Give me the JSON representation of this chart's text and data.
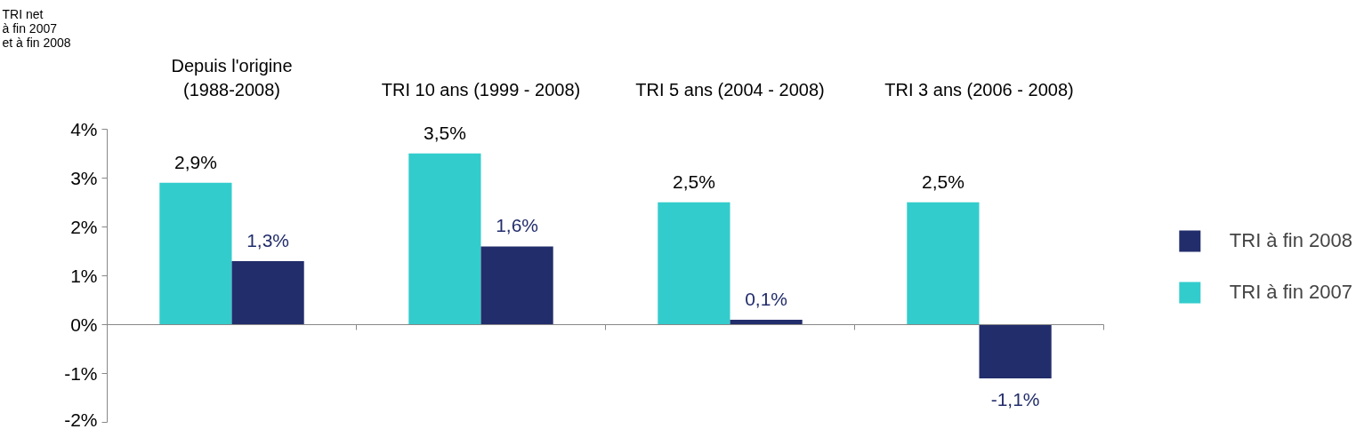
{
  "chart_data": {
    "type": "bar",
    "ylabel": "TRI net\nà fin 2007\net à fin 2008",
    "categories": [
      "Depuis l'origine\n(1988-2008)",
      "TRI 10 ans (1999 - 2008)",
      "TRI 5 ans (2004 - 2008)",
      "TRI 3 ans (2006 - 2008)"
    ],
    "series": [
      {
        "name": "TRI à fin 2007",
        "color": "#33cccc",
        "values": [
          2.9,
          3.5,
          2.5,
          2.5
        ],
        "value_labels": [
          "2,9%",
          "3,5%",
          "2,5%",
          "2,5%"
        ]
      },
      {
        "name": "TRI à fin 2008",
        "color": "#222d6b",
        "values": [
          1.3,
          1.6,
          0.1,
          -1.1
        ],
        "value_labels": [
          "1,3%",
          "1,6%",
          "0,1%",
          "-1,1%"
        ]
      }
    ],
    "ylim": [
      -2,
      4
    ],
    "yticks": [
      {
        "value": -2,
        "label": "-2%"
      },
      {
        "value": -1,
        "label": "-1%"
      },
      {
        "value": 0,
        "label": "0%"
      },
      {
        "value": 1,
        "label": "1%"
      },
      {
        "value": 2,
        "label": "2%"
      },
      {
        "value": 3,
        "label": "3%"
      },
      {
        "value": 4,
        "label": "4%"
      }
    ],
    "legend": "right"
  }
}
